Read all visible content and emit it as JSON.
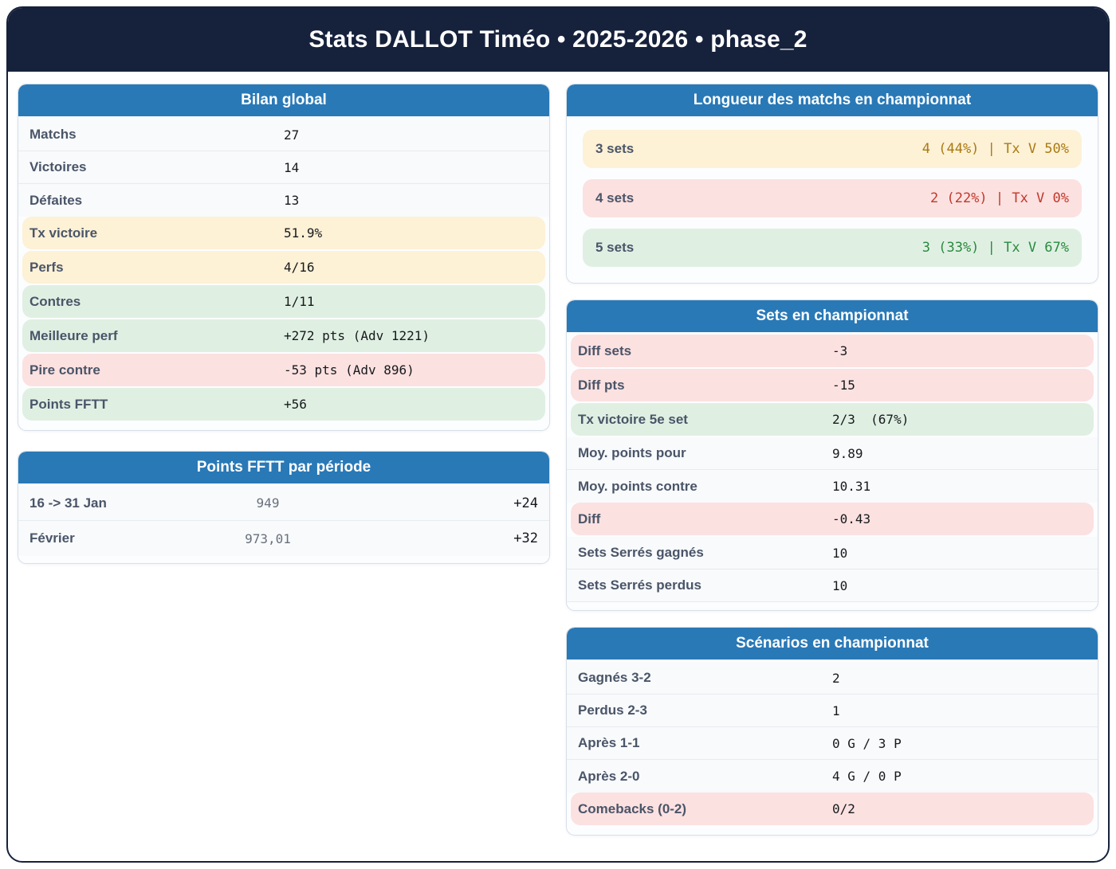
{
  "title": "Stats DALLOT Timéo • 2025-2026 • phase_2",
  "colors": {
    "topbar_navy": "#16213c",
    "card_header_blue": "#2979b7",
    "warn_bg": "#fdf1d6",
    "bad_bg": "#fce1e1",
    "good_bg": "#dff0e3",
    "warn_text": "#a97b13",
    "bad_text": "#c0392b",
    "good_text": "#2b8a3e"
  },
  "cards": {
    "bilan": {
      "title": "Bilan global",
      "rows": [
        {
          "label": "Matchs",
          "value": "27",
          "tone": "plain"
        },
        {
          "label": "Victoires",
          "value": "14",
          "tone": "plain"
        },
        {
          "label": "Défaites",
          "value": "13",
          "tone": "plain"
        },
        {
          "label": "Tx victoire",
          "value": "51.9%",
          "tone": "warn"
        },
        {
          "label": "Perfs",
          "value": "4/16",
          "tone": "warn"
        },
        {
          "label": "Contres",
          "value": "1/11",
          "tone": "good"
        },
        {
          "label": "Meilleure perf",
          "value": "+272 pts (Adv 1221)",
          "tone": "good"
        },
        {
          "label": "Pire contre",
          "value": "-53 pts (Adv 896)",
          "tone": "bad"
        },
        {
          "label": "Points FFTT",
          "value": "+56",
          "tone": "good"
        }
      ]
    },
    "fftt": {
      "title": "Points FFTT par période",
      "rows": [
        {
          "label": "16 -> 31 Jan",
          "value": "949",
          "delta": "+24"
        },
        {
          "label": "Février",
          "value": "973,01",
          "delta": "+32"
        }
      ]
    },
    "longueur": {
      "title": "Longueur des matchs en championnat",
      "rows": [
        {
          "label": "3 sets",
          "value": "4 (44%) | Tx V 50%",
          "tone": "warn"
        },
        {
          "label": "4 sets",
          "value": "2 (22%) | Tx V 0%",
          "tone": "bad"
        },
        {
          "label": "5 sets",
          "value": "3 (33%) | Tx V 67%",
          "tone": "good"
        }
      ]
    },
    "sets": {
      "title": "Sets en championnat",
      "rows": [
        {
          "label": "Diff sets",
          "value": "-3",
          "tone": "bad"
        },
        {
          "label": "Diff pts",
          "value": "-15",
          "tone": "bad"
        },
        {
          "label": "Tx victoire 5e set",
          "value": "2/3  (67%)",
          "tone": "good"
        },
        {
          "label": "Moy. points pour",
          "value": "9.89",
          "tone": "plain"
        },
        {
          "label": "Moy. points contre",
          "value": "10.31",
          "tone": "plain"
        },
        {
          "label": "Diff",
          "value": "-0.43",
          "tone": "bad"
        },
        {
          "label": "Sets Serrés gagnés",
          "value": "10",
          "tone": "plain"
        },
        {
          "label": "Sets Serrés perdus",
          "value": "10",
          "tone": "plain"
        }
      ]
    },
    "scenarios": {
      "title": "Scénarios en championnat",
      "rows": [
        {
          "label": "Gagnés 3-2",
          "value": "2",
          "tone": "plain"
        },
        {
          "label": "Perdus 2-3",
          "value": "1",
          "tone": "plain"
        },
        {
          "label": "Après 1-1",
          "value": "0 G / 3 P",
          "tone": "plain"
        },
        {
          "label": "Après 2-0",
          "value": "4 G / 0 P",
          "tone": "plain"
        },
        {
          "label": "Comebacks (0-2)",
          "value": "0/2",
          "tone": "bad"
        }
      ]
    }
  }
}
